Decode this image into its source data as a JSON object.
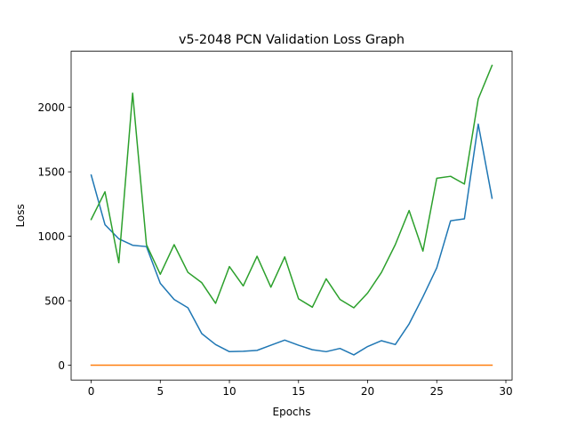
{
  "chart_data": {
    "type": "line",
    "title": "v5-2048 PCN Validation Loss Graph",
    "xlabel": "Epochs",
    "ylabel": "Loss",
    "xlim": [
      -1.45,
      30.45
    ],
    "ylim": [
      -115,
      2435
    ],
    "xticks": [
      0,
      5,
      10,
      15,
      20,
      25,
      30
    ],
    "yticks": [
      0,
      500,
      1000,
      1500,
      2000
    ],
    "grid": false,
    "legend": "none",
    "x": [
      0,
      1,
      2,
      3,
      4,
      5,
      6,
      7,
      8,
      9,
      10,
      11,
      12,
      13,
      14,
      15,
      16,
      17,
      18,
      19,
      20,
      21,
      22,
      23,
      24,
      25,
      26,
      27,
      28,
      29
    ],
    "series": [
      {
        "name": "blue",
        "color": "#1f77b4",
        "values": [
          1475,
          1090,
          980,
          930,
          920,
          635,
          510,
          445,
          245,
          160,
          105,
          108,
          115,
          155,
          195,
          155,
          120,
          105,
          130,
          80,
          145,
          190,
          160,
          320,
          530,
          755,
          1120,
          1135,
          1870,
          1295
        ]
      },
      {
        "name": "orange",
        "color": "#ff7f0e",
        "values": [
          0,
          0,
          0,
          0,
          0,
          0,
          0,
          0,
          0,
          0,
          0,
          0,
          0,
          0,
          0,
          0,
          0,
          0,
          0,
          0,
          0,
          0,
          0,
          0,
          0,
          0,
          0,
          0,
          0,
          0
        ]
      },
      {
        "name": "green",
        "color": "#2ca02c",
        "values": [
          1130,
          1345,
          795,
          2110,
          935,
          705,
          935,
          720,
          640,
          480,
          765,
          615,
          845,
          605,
          840,
          515,
          450,
          670,
          510,
          445,
          560,
          720,
          935,
          1200,
          885,
          1450,
          1465,
          1405,
          2065,
          2325
        ]
      }
    ]
  }
}
